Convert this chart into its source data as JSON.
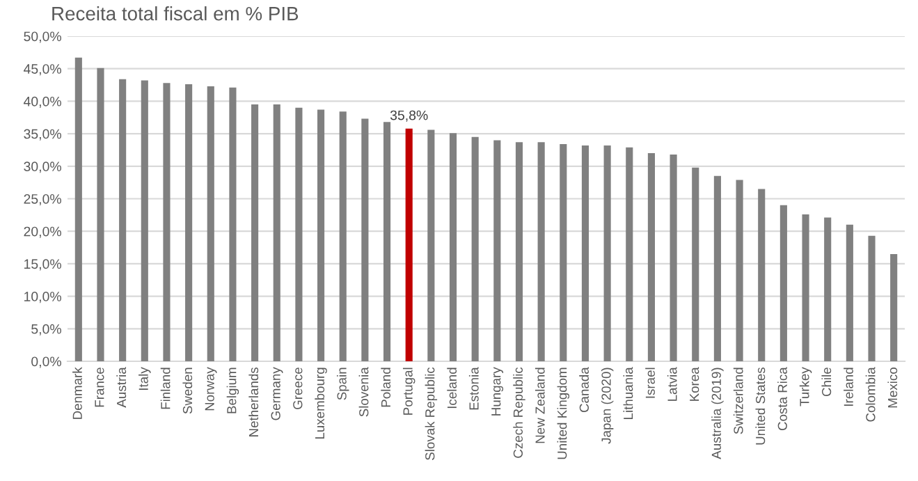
{
  "chart_data": {
    "type": "bar",
    "title": "Receita total fiscal em % PIB",
    "categories": [
      "Denmark",
      "France",
      "Austria",
      "Italy",
      "Finland",
      "Sweden",
      "Norway",
      "Belgium",
      "Netherlands",
      "Germany",
      "Greece",
      "Luxembourg",
      "Spain",
      "Slovenia",
      "Poland",
      "Portugal",
      "Slovak Republic",
      "Iceland",
      "Estonia",
      "Hungary",
      "Czech Republic",
      "New Zealand",
      "United Kingdom",
      "Canada",
      "Japan (2020)",
      "Lithuania",
      "Israel",
      "Latvia",
      "Korea",
      "Australia (2019)",
      "Switzerland",
      "United States",
      "Costa Rica",
      "Turkey",
      "Chile",
      "Ireland",
      "Colombia",
      "Mexico"
    ],
    "values": [
      46.7,
      45.1,
      43.4,
      43.2,
      42.8,
      42.6,
      42.3,
      42.1,
      39.5,
      39.5,
      39.0,
      38.7,
      38.4,
      37.3,
      36.8,
      35.8,
      35.6,
      35.1,
      34.5,
      34.0,
      33.7,
      33.7,
      33.4,
      33.2,
      33.2,
      32.9,
      32.0,
      31.8,
      29.8,
      28.5,
      27.9,
      26.5,
      24.0,
      22.6,
      22.1,
      21.0,
      19.3,
      16.5
    ],
    "colors": [
      "#808080",
      "#808080",
      "#808080",
      "#808080",
      "#808080",
      "#808080",
      "#808080",
      "#808080",
      "#808080",
      "#808080",
      "#808080",
      "#808080",
      "#808080",
      "#808080",
      "#808080",
      "#c00000",
      "#808080",
      "#808080",
      "#808080",
      "#808080",
      "#808080",
      "#808080",
      "#808080",
      "#808080",
      "#808080",
      "#808080",
      "#808080",
      "#808080",
      "#808080",
      "#808080",
      "#808080",
      "#808080",
      "#808080",
      "#808080",
      "#808080",
      "#808080",
      "#808080",
      "#808080"
    ],
    "value_labels": [
      null,
      null,
      null,
      null,
      null,
      null,
      null,
      null,
      null,
      null,
      null,
      null,
      null,
      null,
      null,
      "35,8%",
      null,
      null,
      null,
      null,
      null,
      null,
      null,
      null,
      null,
      null,
      null,
      null,
      null,
      null,
      null,
      null,
      null,
      null,
      null,
      null,
      null,
      null
    ],
    "ylim": [
      0,
      50
    ],
    "yticks": [
      {
        "value": 0,
        "label": "0,0%"
      },
      {
        "value": 5,
        "label": "5,0%"
      },
      {
        "value": 10,
        "label": "10,0%"
      },
      {
        "value": 15,
        "label": "15,0%"
      },
      {
        "value": 20,
        "label": "20,0%"
      },
      {
        "value": 25,
        "label": "25,0%"
      },
      {
        "value": 30,
        "label": "30,0%"
      },
      {
        "value": 35,
        "label": "35,0%"
      },
      {
        "value": 40,
        "label": "40,0%"
      },
      {
        "value": 45,
        "label": "45,0%"
      },
      {
        "value": 50,
        "label": "50,0%"
      }
    ],
    "grid": "y"
  }
}
